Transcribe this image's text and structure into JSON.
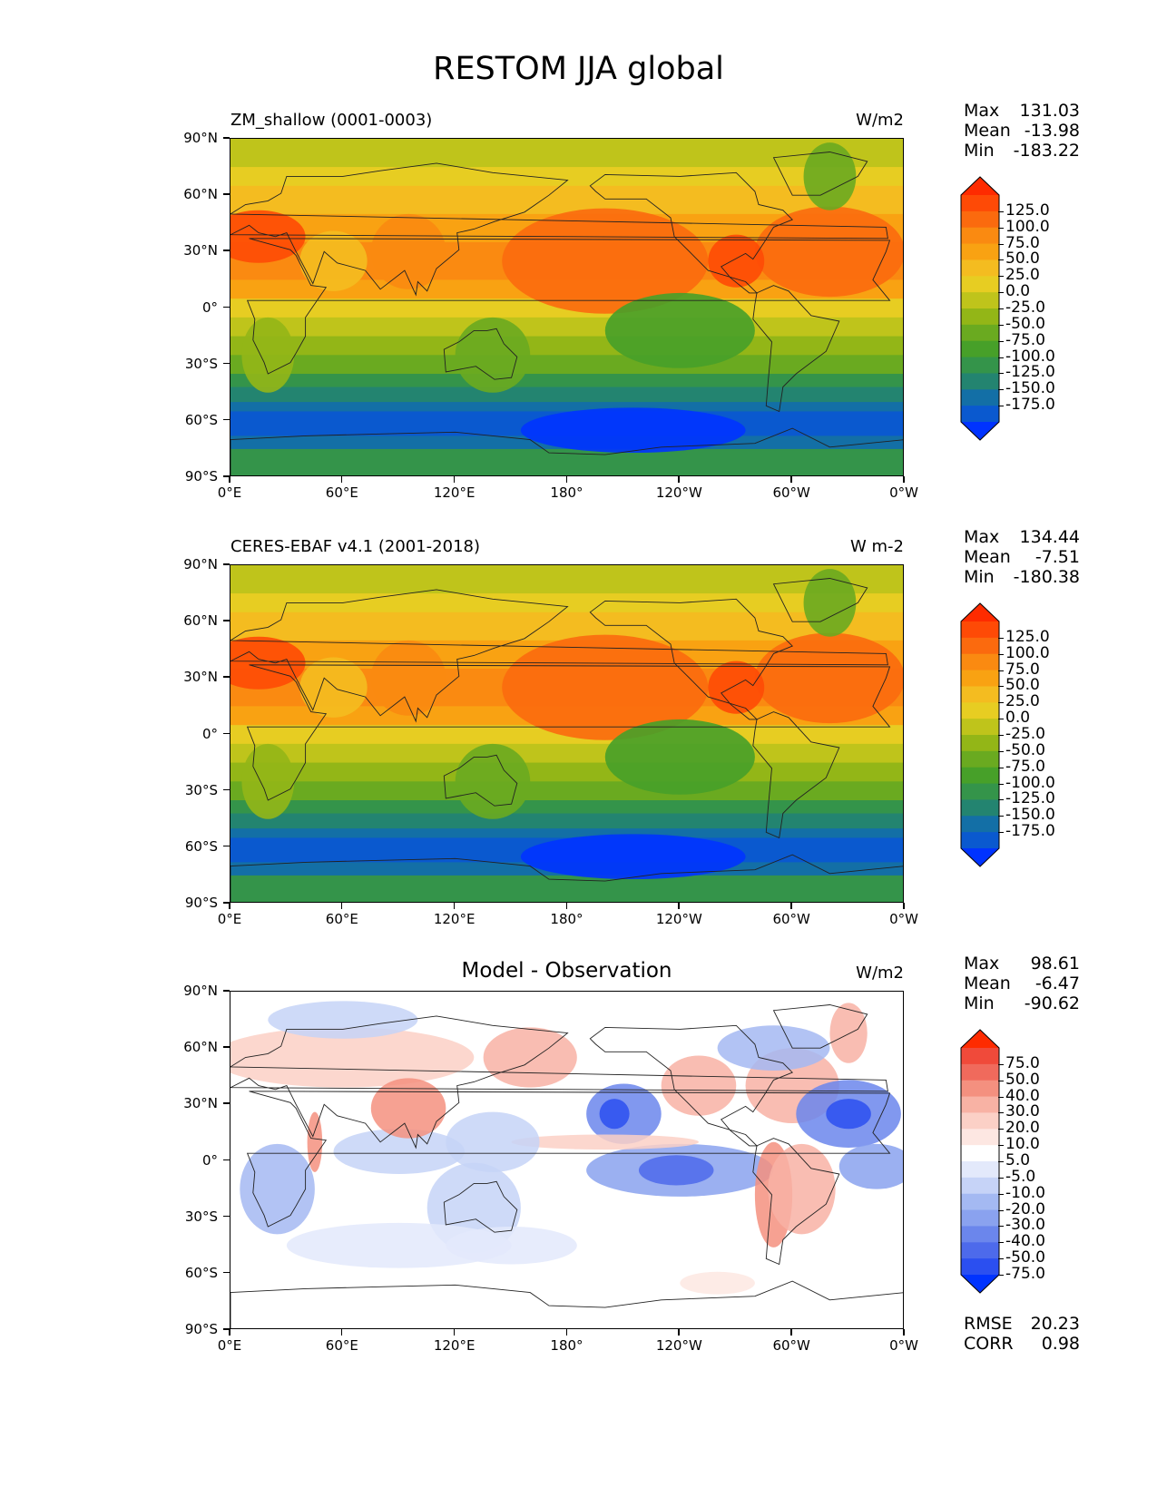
{
  "figure": {
    "title": "RESTOM JJA global"
  },
  "axes": {
    "lat_ticks": [
      "90°N",
      "60°N",
      "30°N",
      "0°",
      "30°S",
      "60°S",
      "90°S"
    ],
    "lon_ticks": [
      "0°E",
      "60°E",
      "120°E",
      "180°",
      "120°W",
      "60°W",
      "0°W"
    ]
  },
  "panels": [
    {
      "left_title": "ZM_shallow (0001-0003)",
      "center_title": "",
      "units": "W/m2",
      "stats": {
        "max_label": "Max",
        "max": "131.03",
        "mean_label": "Mean",
        "mean": "-13.98",
        "min_label": "Min",
        "min": "-183.22"
      },
      "colorbar": {
        "labels": [
          "125.0",
          "100.0",
          "75.0",
          "50.0",
          "25.0",
          "0.0",
          "-25.0",
          "-50.0",
          "-75.0",
          "-100.0",
          "-125.0",
          "-150.0",
          "-175.0"
        ],
        "colors": [
          "#fe2b00",
          "#fe4a06",
          "#fb6a0e",
          "#fa8a11",
          "#f9a212",
          "#f4bc20",
          "#e7cd22",
          "#bfc41b",
          "#93b617",
          "#6aaa20",
          "#47a029",
          "#34944a",
          "#238470",
          "#136fa6",
          "#0a59cf",
          "#0033ff"
        ]
      }
    },
    {
      "left_title": "CERES-EBAF v4.1 (2001-2018)",
      "center_title": "",
      "units": "W m-2",
      "stats": {
        "max_label": "Max",
        "max": "134.44",
        "mean_label": "Mean",
        "mean": "-7.51",
        "min_label": "Min",
        "min": "-180.38"
      },
      "colorbar": {
        "labels": [
          "125.0",
          "100.0",
          "75.0",
          "50.0",
          "25.0",
          "0.0",
          "-25.0",
          "-50.0",
          "-75.0",
          "-100.0",
          "-125.0",
          "-150.0",
          "-175.0"
        ],
        "colors": [
          "#fe2b00",
          "#fe4a06",
          "#fb6a0e",
          "#fa8a11",
          "#f9a212",
          "#f4bc20",
          "#e7cd22",
          "#bfc41b",
          "#93b617",
          "#6aaa20",
          "#47a029",
          "#34944a",
          "#238470",
          "#136fa6",
          "#0a59cf",
          "#0033ff"
        ]
      }
    },
    {
      "left_title": "",
      "center_title": "Model - Observation",
      "units": "W/m2",
      "stats": {
        "max_label": "Max",
        "max": "98.61",
        "mean_label": "Mean",
        "mean": "-6.47",
        "min_label": "Min",
        "min": "-90.62"
      },
      "colorbar": {
        "labels": [
          "75.0",
          "50.0",
          "40.0",
          "30.0",
          "20.0",
          "10.0",
          "5.0",
          "-5.0",
          "-10.0",
          "-20.0",
          "-30.0",
          "-40.0",
          "-50.0",
          "-75.0"
        ],
        "colors": [
          "#fe2b00",
          "#f04a3a",
          "#f06a5c",
          "#f4907f",
          "#f8b2a4",
          "#fbd0c6",
          "#fde7e2",
          "#ffffff",
          "#e3e9fb",
          "#c6d3f7",
          "#a4b9f2",
          "#8aa2ef",
          "#6b86ec",
          "#4d6aeb",
          "#2b4ff0",
          "#0033ff"
        ]
      },
      "metrics": {
        "rmse_label": "RMSE",
        "rmse": "20.23",
        "corr_label": "CORR",
        "corr": "0.98"
      }
    }
  ],
  "chart_data": [
    {
      "type": "heatmap",
      "title": "ZM_shallow (0001-0003)",
      "units": "W/m2",
      "x_ticks": [
        "0°E",
        "60°E",
        "120°E",
        "180°",
        "120°W",
        "60°W",
        "0°W"
      ],
      "y_ticks": [
        "90°N",
        "60°N",
        "30°N",
        "0°",
        "30°S",
        "60°S",
        "90°S"
      ],
      "xlim": [
        0,
        360
      ],
      "ylim": [
        -90,
        90
      ],
      "levels": [
        -175,
        -150,
        -125,
        -100,
        -75,
        -50,
        -25,
        0,
        25,
        50,
        75,
        100,
        125
      ],
      "max": 131.03,
      "mean": -13.98,
      "min": -183.22
    },
    {
      "type": "heatmap",
      "title": "CERES-EBAF v4.1 (2001-2018)",
      "units": "W m-2",
      "x_ticks": [
        "0°E",
        "60°E",
        "120°E",
        "180°",
        "120°W",
        "60°W",
        "0°W"
      ],
      "y_ticks": [
        "90°N",
        "60°N",
        "30°N",
        "0°",
        "30°S",
        "60°S",
        "90°S"
      ],
      "xlim": [
        0,
        360
      ],
      "ylim": [
        -90,
        90
      ],
      "levels": [
        -175,
        -150,
        -125,
        -100,
        -75,
        -50,
        -25,
        0,
        25,
        50,
        75,
        100,
        125
      ],
      "max": 134.44,
      "mean": -7.51,
      "min": -180.38
    },
    {
      "type": "heatmap",
      "title": "Model - Observation",
      "units": "W/m2",
      "x_ticks": [
        "0°E",
        "60°E",
        "120°E",
        "180°",
        "120°W",
        "60°W",
        "0°W"
      ],
      "y_ticks": [
        "90°N",
        "60°N",
        "30°N",
        "0°",
        "30°S",
        "60°S",
        "90°S"
      ],
      "xlim": [
        0,
        360
      ],
      "ylim": [
        -90,
        90
      ],
      "levels": [
        -75,
        -50,
        -40,
        -30,
        -20,
        -10,
        -5,
        5,
        10,
        20,
        30,
        40,
        50,
        75
      ],
      "max": 98.61,
      "mean": -6.47,
      "min": -90.62,
      "rmse": 20.23,
      "corr": 0.98
    }
  ]
}
